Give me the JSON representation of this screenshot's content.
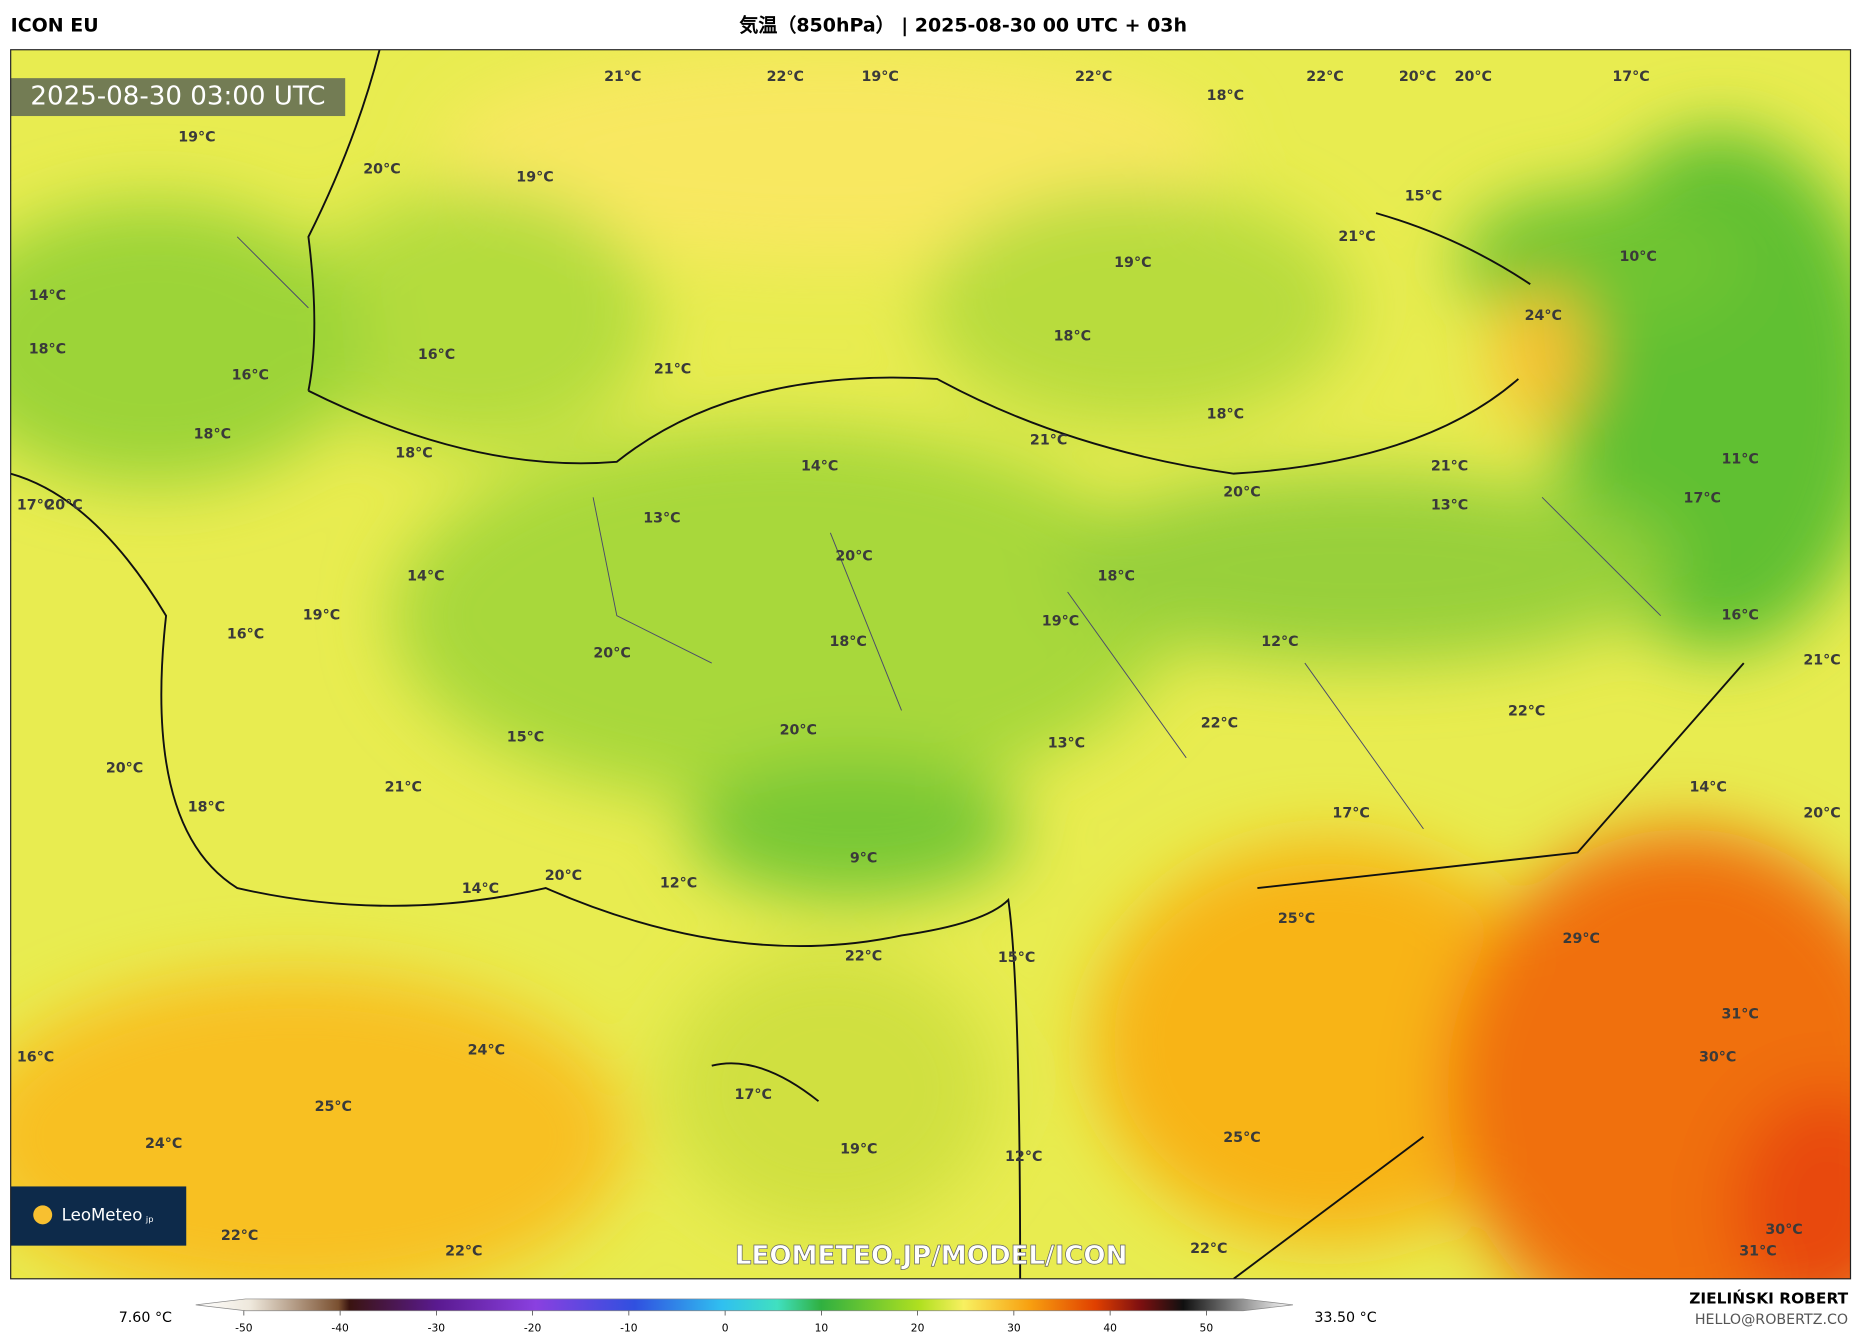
{
  "header": {
    "model": "ICON EU",
    "title": "気温（850hPa） | 2025-08-30 00 UTC + 03h"
  },
  "map": {
    "timestamp": "2025-08-30 03:00 UTC",
    "watermark": "LEOMETEO.JP/MODEL/ICON",
    "logo": "LeoMeteo",
    "logo_suffix": "jp",
    "labels": [
      "21°C",
      "22°C",
      "19°C",
      "22°C",
      "18°C",
      "22°C",
      "20°C",
      "20°C",
      "17°C",
      "19°C",
      "20°C",
      "19°C",
      "15°C",
      "21°C",
      "10°C",
      "19°C",
      "14°C",
      "24°C",
      "18°C",
      "18°C",
      "16°C",
      "21°C",
      "16°C",
      "18°C",
      "18°C",
      "21°C",
      "18°C",
      "11°C",
      "14°C",
      "21°C",
      "20°C",
      "17°C",
      "13°C",
      "17°C",
      "20°C",
      "13°C",
      "20°C",
      "18°C",
      "14°C",
      "19°C",
      "19°C",
      "16°C",
      "16°C",
      "12°C",
      "18°C",
      "20°C",
      "21°C",
      "22°C",
      "22°C",
      "20°C",
      "15°C",
      "13°C",
      "20°C",
      "21°C",
      "14°C",
      "18°C",
      "17°C",
      "20°C",
      "9°C",
      "20°C",
      "12°C",
      "14°C",
      "25°C",
      "29°C",
      "22°C",
      "15°C",
      "31°C",
      "24°C",
      "16°C",
      "30°C",
      "17°C",
      "25°C",
      "24°C",
      "19°C",
      "12°C",
      "25°C",
      "30°C",
      "22°C",
      "22°C",
      "22°C",
      "31°C"
    ]
  },
  "colorbar": {
    "min_label": "7.60 °C",
    "max_label": "33.50 °C",
    "range": [
      -55,
      59
    ],
    "ticks": [
      -50,
      -40,
      -30,
      -20,
      -10,
      0,
      10,
      20,
      30,
      40,
      50
    ]
  },
  "footer": {
    "author": "ZIELIŃSKI ROBERT",
    "email": "HELLO@ROBERTZ.CO"
  }
}
